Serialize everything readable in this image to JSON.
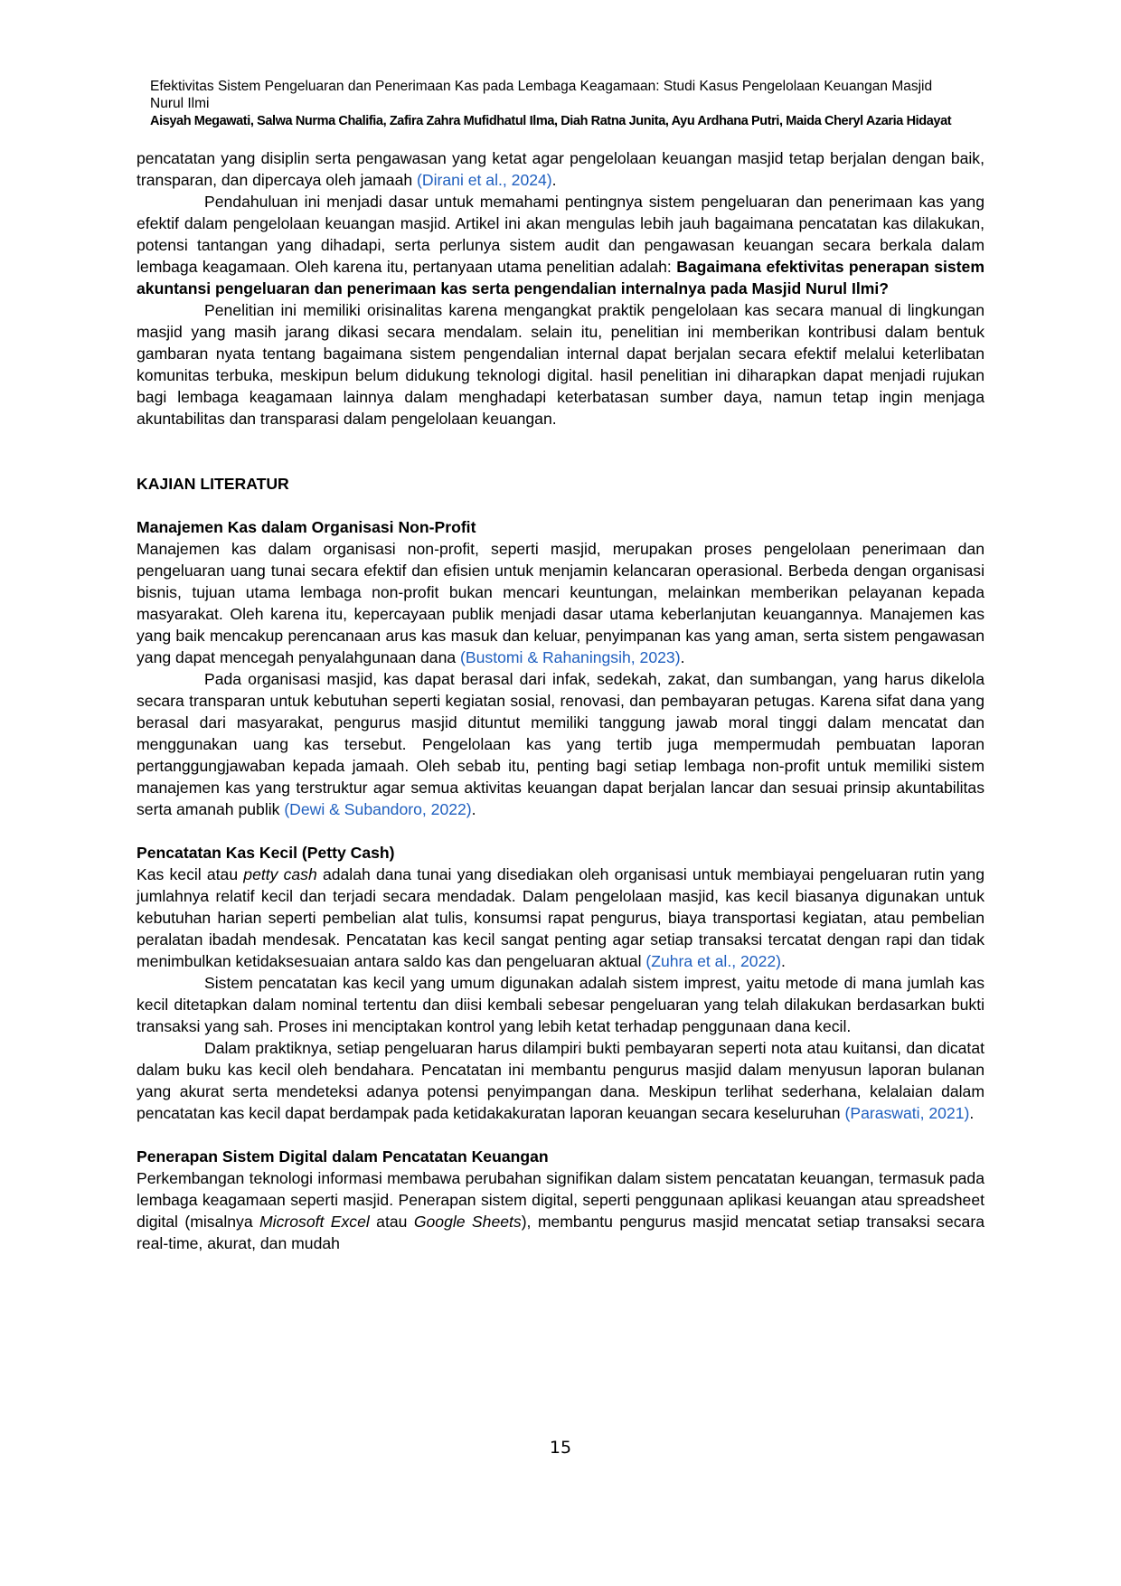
{
  "header": {
    "title": "Efektivitas Sistem Pengeluaran dan Penerimaan Kas pada Lembaga Keagamaan: Studi Kasus Pengelolaan Keuangan Masjid Nurul Ilmi",
    "authors": "Aisyah Megawati, Salwa Nurma Chalifia, Zafira Zahra Mufidhatul Ilma, Diah Ratna Junita, Ayu Ardhana Putri, Maida Cheryl Azaria Hidayat"
  },
  "colors": {
    "citation": "#1f5fbf"
  },
  "blocks": [
    {
      "type": "p",
      "indent": false,
      "segments": [
        {
          "t": "pencatatan yang disiplin serta pengawasan yang ketat agar pengelolaan keuangan masjid tetap berjalan dengan baik, transparan, dan dipercaya oleh jamaah "
        },
        {
          "t": "(Dirani et al., 2024)",
          "s": "cite"
        },
        {
          "t": "."
        }
      ]
    },
    {
      "type": "p",
      "indent": true,
      "segments": [
        {
          "t": "Pendahuluan ini menjadi dasar untuk memahami pentingnya sistem pengeluaran dan penerimaan kas yang efektif dalam pengelolaan keuangan masjid. Artikel ini akan mengulas lebih jauh bagaimana pencatatan kas dilakukan, potensi tantangan yang dihadapi, serta perlunya sistem audit dan pengawasan keuangan secara berkala dalam lembaga keagamaan. Oleh karena itu, pertanyaan utama penelitian adalah: "
        },
        {
          "t": "Bagaimana efektivitas penerapan sistem akuntansi pengeluaran dan penerimaan kas serta pengendalian internalnya pada Masjid Nurul Ilmi?",
          "s": "bold"
        }
      ]
    },
    {
      "type": "p",
      "indent": true,
      "segments": [
        {
          "t": "Penelitian ini memiliki orisinalitas karena mengangkat praktik pengelolaan kas secara manual di lingkungan masjid yang masih jarang dikasi secara mendalam. selain itu, penelitian ini memberikan kontribusi dalam bentuk gambaran nyata tentang bagaimana sistem pengendalian internal dapat berjalan secara efektif melalui keterlibatan komunitas terbuka, meskipun belum didukung teknologi digital. hasil penelitian ini diharapkan dapat menjadi rujukan bagi lembaga keagamaan lainnya dalam menghadapi keterbatasan sumber daya, namun tetap ingin menjaga akuntabilitas dan transparasi dalam pengelolaan keuangan."
        }
      ]
    },
    {
      "type": "h2",
      "text": "KAJIAN LITERATUR"
    },
    {
      "type": "h3",
      "text": "Manajemen Kas dalam Organisasi Non-Profit"
    },
    {
      "type": "p",
      "indent": false,
      "segments": [
        {
          "t": "Manajemen kas dalam organisasi non-profit, seperti masjid, merupakan proses pengelolaan penerimaan dan pengeluaran uang tunai secara efektif dan efisien untuk menjamin kelancaran operasional. Berbeda dengan organisasi bisnis, tujuan utama lembaga non-profit bukan mencari keuntungan, melainkan memberikan pelayanan kepada masyarakat. Oleh karena itu, kepercayaan publik menjadi dasar utama keberlanjutan keuangannya. Manajemen kas yang baik mencakup perencanaan arus kas masuk dan keluar, penyimpanan kas yang aman, serta sistem pengawasan yang dapat mencegah penyalahgunaan dana "
        },
        {
          "t": "(Bustomi & Rahaningsih, 2023)",
          "s": "cite"
        },
        {
          "t": "."
        }
      ]
    },
    {
      "type": "p",
      "indent": true,
      "segments": [
        {
          "t": "Pada organisasi masjid, kas dapat berasal dari infak, sedekah, zakat, dan sumbangan, yang harus dikelola secara transparan untuk kebutuhan seperti kegiatan sosial, renovasi, dan pembayaran petugas. Karena sifat dana yang berasal dari masyarakat, pengurus masjid dituntut memiliki tanggung jawab moral tinggi dalam mencatat dan menggunakan uang kas tersebut. Pengelolaan kas yang tertib juga mempermudah pembuatan laporan pertanggungjawaban kepada jamaah. Oleh sebab itu, penting bagi setiap lembaga non-profit untuk memiliki sistem manajemen kas yang terstruktur agar semua aktivitas keuangan dapat berjalan lancar dan sesuai prinsip akuntabilitas serta amanah publik "
        },
        {
          "t": "(Dewi & Subandoro, 2022)",
          "s": "cite"
        },
        {
          "t": "."
        }
      ]
    },
    {
      "type": "h3",
      "gap": true,
      "text": "Pencatatan Kas Kecil (Petty Cash)"
    },
    {
      "type": "p",
      "indent": false,
      "segments": [
        {
          "t": "Kas kecil atau "
        },
        {
          "t": "petty cash",
          "s": "italic"
        },
        {
          "t": " adalah dana tunai yang disediakan oleh organisasi untuk membiayai pengeluaran rutin yang jumlahnya relatif kecil dan terjadi secara mendadak. Dalam pengelolaan masjid, kas kecil biasanya digunakan untuk kebutuhan harian seperti pembelian alat tulis, konsumsi rapat pengurus, biaya transportasi kegiatan, atau pembelian peralatan ibadah mendesak. Pencatatan kas kecil sangat penting agar setiap transaksi tercatat dengan rapi dan tidak menimbulkan ketidaksesuaian antara saldo kas dan pengeluaran aktual "
        },
        {
          "t": "(Zuhra et al., 2022)",
          "s": "cite"
        },
        {
          "t": "."
        }
      ]
    },
    {
      "type": "p",
      "indent": true,
      "segments": [
        {
          "t": "Sistem pencatatan kas kecil yang umum digunakan adalah sistem imprest, yaitu metode di mana jumlah kas kecil ditetapkan dalam nominal tertentu dan diisi kembali sebesar pengeluaran yang telah dilakukan berdasarkan bukti transaksi yang sah. Proses ini menciptakan kontrol yang lebih ketat terhadap penggunaan dana kecil."
        }
      ]
    },
    {
      "type": "p",
      "indent": true,
      "segments": [
        {
          "t": "Dalam praktiknya, setiap pengeluaran harus dilampiri bukti pembayaran seperti nota atau kuitansi, dan dicatat dalam buku kas kecil oleh bendahara. Pencatatan ini membantu pengurus masjid dalam menyusun laporan bulanan yang akurat serta mendeteksi adanya potensi penyimpangan dana. Meskipun terlihat sederhana, kelalaian dalam pencatatan kas kecil dapat berdampak pada ketidakakuratan laporan keuangan secara keseluruhan "
        },
        {
          "t": "(Paraswati, 2021)",
          "s": "cite"
        },
        {
          "t": "."
        }
      ]
    },
    {
      "type": "h3",
      "gap": true,
      "text": "Penerapan Sistem Digital dalam Pencatatan Keuangan"
    },
    {
      "type": "p",
      "indent": false,
      "segments": [
        {
          "t": "Perkembangan teknologi informasi membawa perubahan signifikan dalam sistem pencatatan keuangan, termasuk pada lembaga keagamaan seperti masjid. Penerapan sistem digital, seperti penggunaan aplikasi keuangan atau spreadsheet digital (misalnya "
        },
        {
          "t": "Microsoft Excel",
          "s": "italic"
        },
        {
          "t": " atau "
        },
        {
          "t": "Google Sheets",
          "s": "italic"
        },
        {
          "t": "), membantu pengurus masjid mencatat setiap transaksi secara real-time, akurat, dan mudah"
        }
      ]
    }
  ],
  "page_number": "15"
}
